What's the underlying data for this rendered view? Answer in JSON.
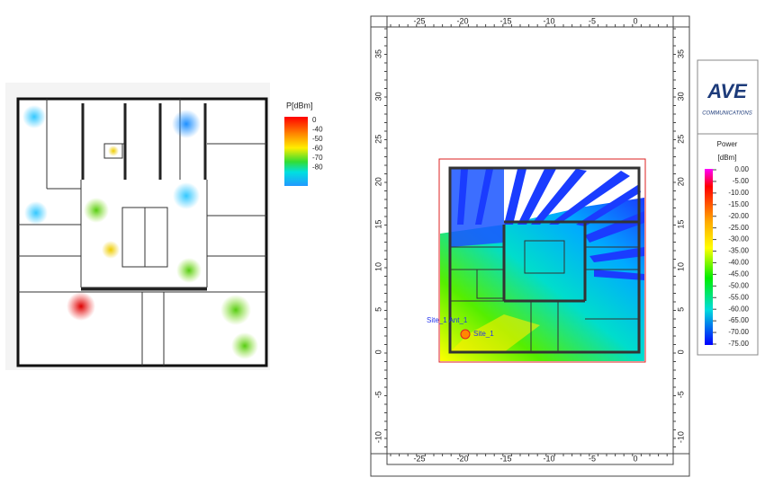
{
  "left_plan": {
    "legend": {
      "title": "P[dBm]",
      "labels": [
        "0",
        "-40",
        "-50",
        "-60",
        "-70",
        "-80"
      ]
    }
  },
  "right_plan": {
    "ruler_x": [
      "-25",
      "-20",
      "-15",
      "-10",
      "-5",
      "0"
    ],
    "ruler_y": [
      "35",
      "30",
      "25",
      "20",
      "15",
      "10",
      "5",
      "0",
      "-5",
      "-10"
    ],
    "site_label": "Site_1 Ant_1",
    "site_name": "Site_1",
    "logo": {
      "brand": "AVE",
      "tagline": "COMMUNICATIONS"
    },
    "legend": {
      "title": "Power",
      "unit": "[dBm]",
      "labels": [
        "0.00",
        "-5.00",
        "-10.00",
        "-15.00",
        "-20.00",
        "-25.00",
        "-30.00",
        "-35.00",
        "-40.00",
        "-45.00",
        "-50.00",
        "-55.00",
        "-60.00",
        "-65.00",
        "-70.00",
        "-75.00"
      ]
    }
  }
}
